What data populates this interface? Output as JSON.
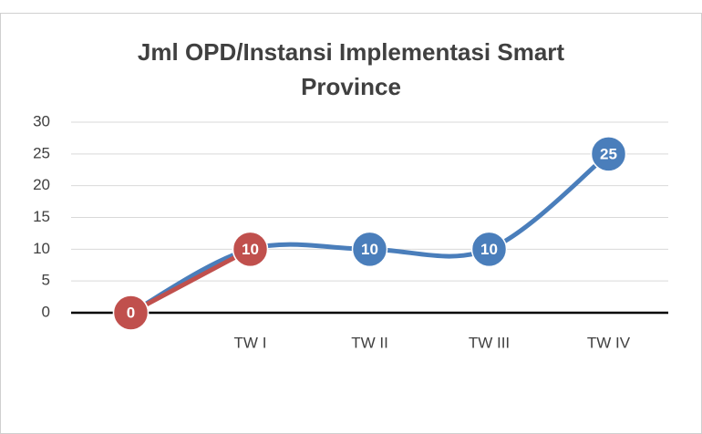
{
  "chart_data": {
    "type": "line",
    "title": "Jml OPD/Instansi Implementasi Smart Province",
    "categories": [
      null,
      "TW I",
      "TW II",
      "TW III",
      "TW IV"
    ],
    "series": [
      {
        "color": "#4a7ebb",
        "values": [
          0,
          10,
          10,
          10,
          25
        ]
      },
      {
        "color": "#c0504d",
        "values": [
          0,
          10,
          null,
          null,
          null
        ]
      }
    ],
    "ylim": [
      0,
      30
    ],
    "yticks": [
      0,
      5,
      10,
      15,
      20,
      25,
      30
    ],
    "grid": true,
    "data_labels": true
  }
}
